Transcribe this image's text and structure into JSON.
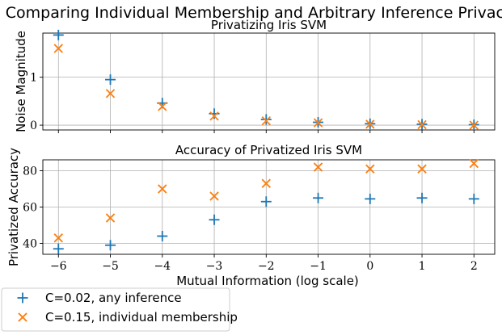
{
  "figure_title": "Comparing Individual Membership and Arbitrary Inference Privacy",
  "xlabel": "Mutual Information (log scale)",
  "colors": {
    "series1": "#1f77b4",
    "series2": "#ff7f0e"
  },
  "legend": {
    "placement": "bottom-left",
    "entries": [
      {
        "label": "C=0.02, any inference",
        "marker": "plus",
        "color": "#1f77b4"
      },
      {
        "label": "C=0.15, individual membership",
        "marker": "x",
        "color": "#ff7f0e"
      }
    ]
  },
  "chart_data": [
    {
      "type": "scatter",
      "title": "Privatizing Iris SVM",
      "xlabel": "",
      "ylabel": "Noise Magnitude",
      "xlim": [
        -6.3,
        2.4
      ],
      "ylim": [
        -0.1,
        1.92
      ],
      "grid": true,
      "xticks": [
        -6,
        -5,
        -4,
        -3,
        -2,
        -1,
        0,
        1,
        2
      ],
      "yticks": [
        0,
        1
      ],
      "show_xtick_labels": false,
      "x": [
        -6,
        -5,
        -4,
        -3,
        -2,
        -1,
        0,
        1,
        2
      ],
      "series": [
        {
          "name": "C=0.02, any inference",
          "marker": "plus",
          "color": "#1f77b4",
          "values": [
            1.88,
            0.95,
            0.46,
            0.24,
            0.12,
            0.06,
            0.03,
            0.02,
            0.01
          ]
        },
        {
          "name": "C=0.15, individual membership",
          "marker": "x",
          "color": "#ff7f0e",
          "values": [
            1.6,
            0.66,
            0.39,
            0.19,
            0.09,
            0.05,
            0.02,
            0.01,
            0.0
          ]
        }
      ]
    },
    {
      "type": "scatter",
      "title": "Accuracy of Privatized Iris SVM",
      "xlabel": "Mutual Information (log scale)",
      "ylabel": "Privatized Accuracy",
      "xlim": [
        -6.3,
        2.4
      ],
      "ylim": [
        34,
        86
      ],
      "grid": true,
      "xticks": [
        -6,
        -5,
        -4,
        -3,
        -2,
        -1,
        0,
        1,
        2
      ],
      "yticks": [
        40,
        60,
        80
      ],
      "show_xtick_labels": true,
      "x": [
        -6,
        -5,
        -4,
        -3,
        -2,
        -1,
        0,
        1,
        2
      ],
      "series": [
        {
          "name": "C=0.02, any inference",
          "marker": "plus",
          "color": "#1f77b4",
          "values": [
            37,
            39,
            44,
            53,
            63,
            65,
            64.5,
            65,
            64.5
          ]
        },
        {
          "name": "C=0.15, individual membership",
          "marker": "x",
          "color": "#ff7f0e",
          "values": [
            43,
            54,
            70,
            66,
            73,
            82,
            81,
            81,
            84
          ]
        }
      ]
    }
  ]
}
